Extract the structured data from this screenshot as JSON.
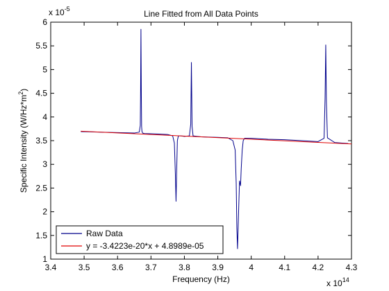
{
  "chart_data": {
    "type": "line",
    "title": "Line Fitted from All Data Points",
    "xlabel": "Frequency (Hz)",
    "ylabel_main": "Specific Intensity (W/Hz*m",
    "ylabel_sup": "2",
    "ylabel_close": ")",
    "x_multiplier_base": "x 10",
    "x_multiplier_exp": "14",
    "y_multiplier_base": "x 10",
    "y_multiplier_exp": "-5",
    "xlim": [
      3.4,
      4.3
    ],
    "ylim": [
      1,
      6
    ],
    "xticks": [
      "3.4",
      "3.5",
      "3.6",
      "3.7",
      "3.8",
      "3.9",
      "4",
      "4.1",
      "4.2",
      "4.3"
    ],
    "yticks": [
      "1",
      "1.5",
      "2",
      "2.5",
      "3",
      "3.5",
      "4",
      "4.5",
      "5",
      "5.5",
      "6"
    ],
    "grid": false,
    "legend_position": "bottom-left",
    "series": [
      {
        "name": "Raw Data",
        "color": "#00008b",
        "x": [
          3.49,
          3.55,
          3.6,
          3.65,
          3.665,
          3.668,
          3.669,
          3.67,
          3.671,
          3.672,
          3.673,
          3.675,
          3.68,
          3.72,
          3.75,
          3.765,
          3.77,
          3.773,
          3.775,
          3.777,
          3.779,
          3.782,
          3.79,
          3.8,
          3.815,
          3.819,
          3.821,
          3.823,
          3.826,
          3.85,
          3.9,
          3.93,
          3.945,
          3.952,
          3.955,
          3.957,
          3.959,
          3.961,
          3.963,
          3.965,
          3.968,
          3.97,
          3.973,
          3.976,
          3.98,
          4.0,
          4.05,
          4.1,
          4.15,
          4.2,
          4.218,
          4.221,
          4.223,
          4.225,
          4.228,
          4.25,
          4.29
        ],
        "values": [
          3.69,
          3.68,
          3.67,
          3.66,
          3.68,
          3.82,
          4.6,
          5.85,
          4.6,
          3.8,
          3.7,
          3.66,
          3.65,
          3.64,
          3.63,
          3.6,
          3.45,
          2.8,
          2.22,
          2.9,
          3.5,
          3.6,
          3.6,
          3.59,
          3.6,
          3.85,
          5.15,
          3.8,
          3.6,
          3.58,
          3.57,
          3.56,
          3.5,
          3.3,
          2.6,
          1.65,
          1.22,
          1.7,
          2.2,
          2.65,
          2.55,
          2.9,
          3.3,
          3.5,
          3.55,
          3.55,
          3.53,
          3.52,
          3.5,
          3.48,
          3.55,
          4.4,
          5.52,
          4.3,
          3.56,
          3.46,
          3.44
        ]
      },
      {
        "name": "y = -3.4223e-20*x + 4.8989e-05",
        "color": "#e00000",
        "x": [
          3.49,
          4.3
        ],
        "values": [
          3.7,
          3.43
        ]
      }
    ]
  }
}
